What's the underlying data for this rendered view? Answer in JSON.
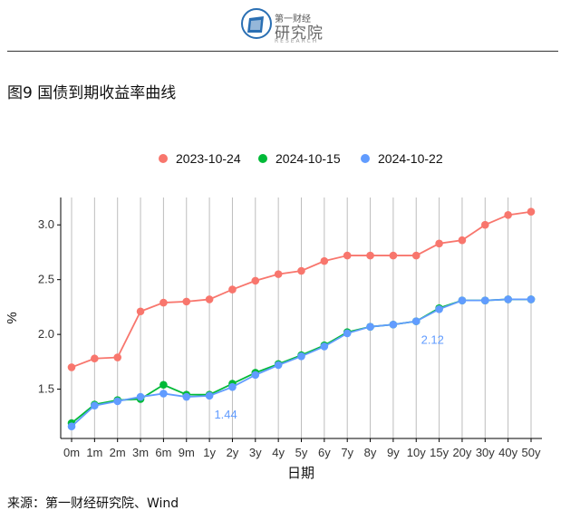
{
  "header": {
    "logo_top": "第一财经",
    "logo_main": "研究院",
    "logo_sub": "RESEARCH"
  },
  "figure_title": "图9 国债到期收益率曲线",
  "source_text": "来源：第一财经研究院、Wind",
  "chart_data": {
    "type": "line",
    "title": "",
    "xlabel": "日期",
    "ylabel": "%",
    "categories": [
      "0m",
      "1m",
      "2m",
      "3m",
      "6m",
      "9m",
      "1y",
      "2y",
      "3y",
      "4y",
      "5y",
      "6y",
      "7y",
      "8y",
      "9y",
      "10y",
      "15y",
      "20y",
      "30y",
      "40y",
      "50y"
    ],
    "ylim": [
      1.05,
      3.25
    ],
    "yticks": [
      1.5,
      2.0,
      2.5,
      3.0
    ],
    "ytick_labels": [
      "1.5",
      "2.0",
      "2.5",
      "3.0"
    ],
    "grid": "vertical",
    "legend_position": "top",
    "series": [
      {
        "name": "2023-10-24",
        "color": "#F8766D",
        "values": [
          1.7,
          1.78,
          1.79,
          2.21,
          2.29,
          2.3,
          2.32,
          2.41,
          2.49,
          2.55,
          2.58,
          2.67,
          2.72,
          2.72,
          2.72,
          2.72,
          2.83,
          2.86,
          3.0,
          3.09,
          3.12
        ]
      },
      {
        "name": "2024-10-15",
        "color": "#00BA38",
        "values": [
          1.19,
          1.36,
          1.4,
          1.41,
          1.54,
          1.45,
          1.45,
          1.55,
          1.65,
          1.73,
          1.81,
          1.9,
          2.02,
          2.07,
          2.09,
          2.12,
          2.24,
          2.31,
          2.31,
          2.32,
          2.32
        ]
      },
      {
        "name": "2024-10-22",
        "color": "#619CFF",
        "values": [
          1.16,
          1.35,
          1.39,
          1.43,
          1.46,
          1.43,
          1.44,
          1.52,
          1.63,
          1.72,
          1.8,
          1.89,
          2.01,
          2.07,
          2.09,
          2.12,
          2.23,
          2.31,
          2.31,
          2.32,
          2.32
        ]
      }
    ],
    "annotations": [
      {
        "text": "1.44",
        "category": "1y",
        "value": 1.44,
        "color": "#619CFF"
      },
      {
        "text": "2.12",
        "category": "10y",
        "value": 2.12,
        "color": "#619CFF"
      }
    ]
  }
}
